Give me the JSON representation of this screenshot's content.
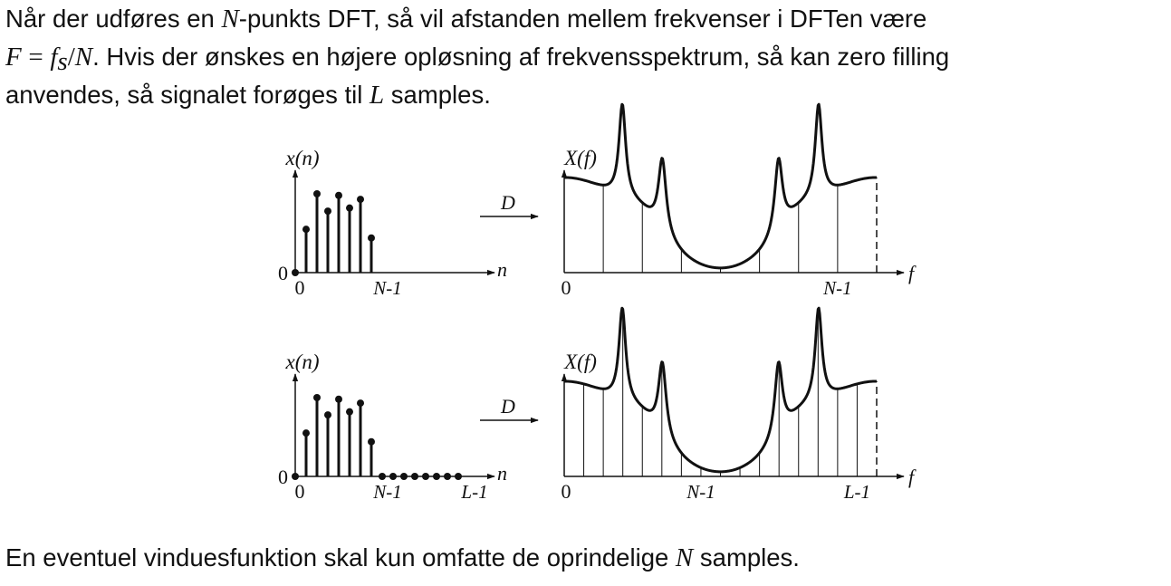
{
  "intro": {
    "line1_text_a": "Når der udføres en ",
    "line1_math_N": "N",
    "line1_text_b": "-punkts DFT, så vil afstanden mellem frekvenser i DFTen være",
    "line2_math_F": "F",
    "line2_math_eq": "=",
    "line2_math_f": "f",
    "line2_math_sub": "s",
    "line2_math_slash": "/",
    "line2_math_N": "N",
    "line2_text": ". Hvis der ønskes en højere opløsning af frekvensspektrum, så kan zero filling",
    "line3_text_a": "anvendes, så signalet forøges til ",
    "line3_math_L": "L",
    "line3_text_b": " samples."
  },
  "figure": {
    "panels": [
      {
        "id": "top",
        "time_label": "x(n)",
        "time_axis_var": "n",
        "time_zero": "0",
        "time_origin": "0",
        "time_ticks": [
          "N-1"
        ],
        "dft_symbol": "D",
        "freq_label": "X(f)",
        "freq_axis_var": "f",
        "freq_origin": "0",
        "freq_ticks": [
          "N-1"
        ],
        "samples": [
          0,
          0.55,
          1.0,
          0.78,
          0.98,
          0.82,
          0.93,
          0.44
        ],
        "zero_padded_samples": 0,
        "spectrum_sample_count": 8
      },
      {
        "id": "bottom",
        "time_label": "x(n)",
        "time_axis_var": "n",
        "time_zero": "0",
        "time_origin": "0",
        "time_ticks": [
          "N-1",
          "L-1"
        ],
        "dft_symbol": "D",
        "freq_label": "X(f)",
        "freq_axis_var": "f",
        "freq_origin": "0",
        "freq_ticks": [
          "N-1",
          "L-1"
        ],
        "samples": [
          0,
          0.55,
          1.0,
          0.78,
          0.98,
          0.82,
          0.93,
          0.44
        ],
        "zero_padded_samples": 8,
        "spectrum_sample_count": 16
      }
    ]
  },
  "outro": {
    "text_a": "En eventuel vinduesfunktion skal kun omfatte de oprindelige ",
    "math_N": "N",
    "text_b": " samples."
  },
  "colors": {
    "ink": "#111111",
    "background": "#ffffff"
  }
}
